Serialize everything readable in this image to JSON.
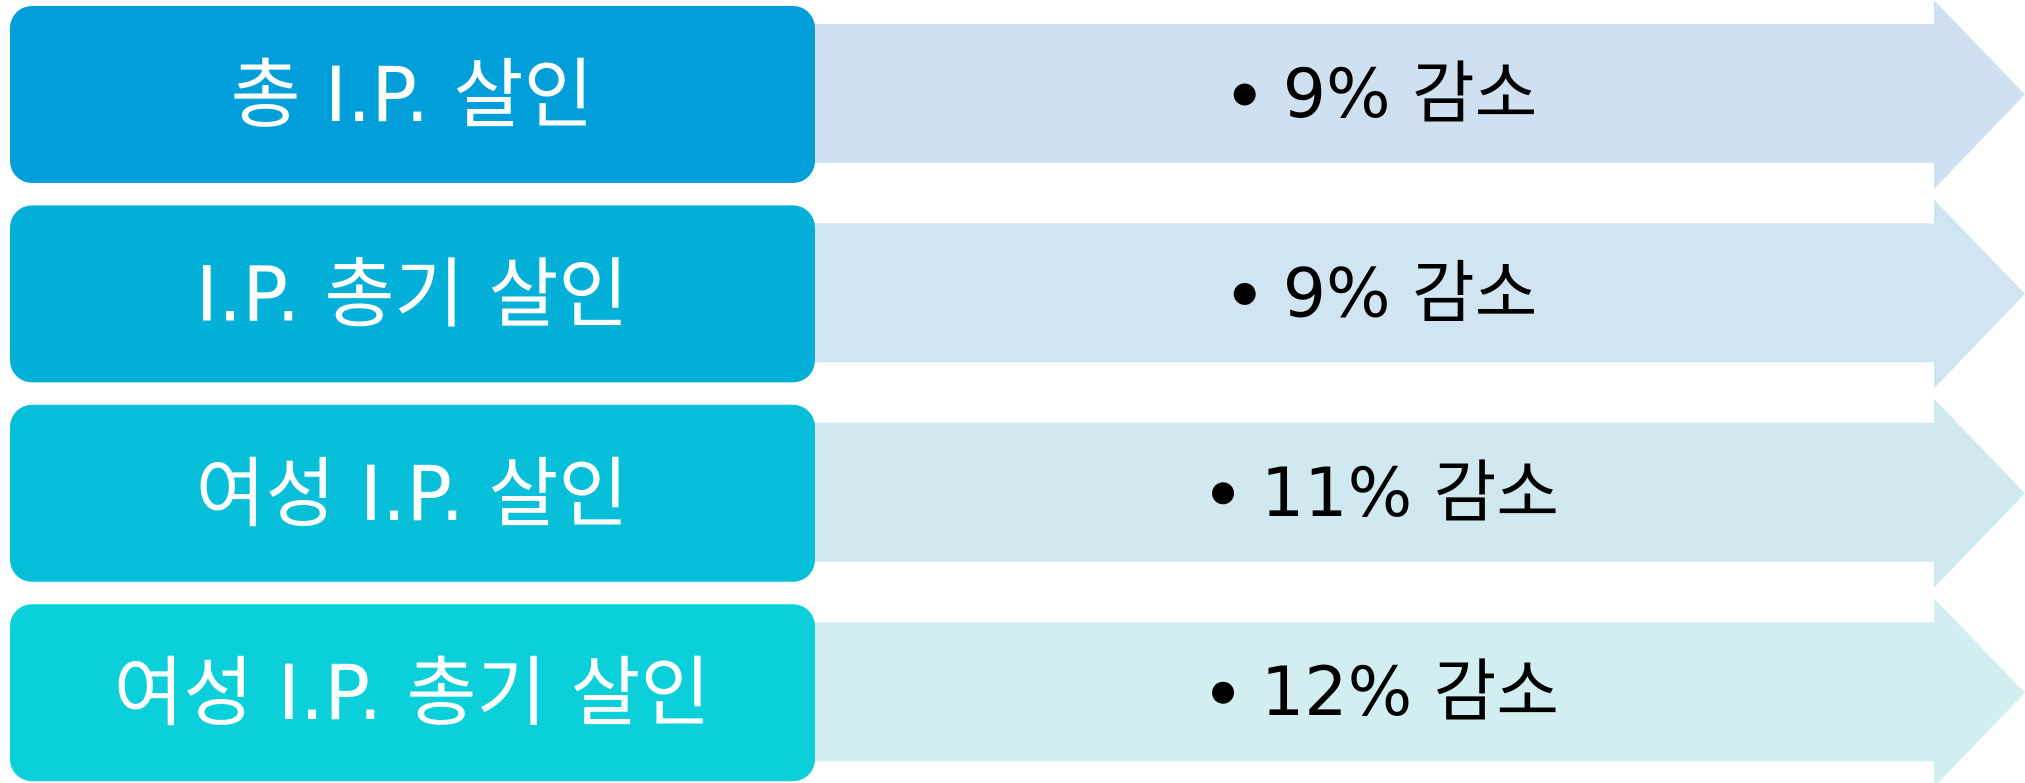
{
  "rows": [
    {
      "label": "총 I.P. 살인",
      "value": "9% 감소"
    },
    {
      "label": "I.P. 총기 살인",
      "value": "9% 감소"
    },
    {
      "label": "여성 I.P. 살인",
      "value": "11% 감소"
    },
    {
      "label": "여성 I.P. 총기 살인",
      "value": "12% 감소"
    }
  ]
}
